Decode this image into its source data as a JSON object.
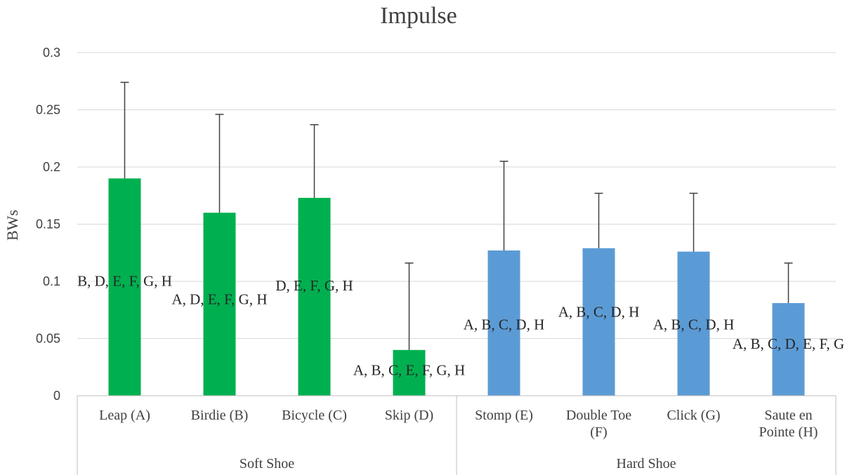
{
  "chart_data": {
    "type": "bar",
    "title": "Impulse",
    "ylabel": "BWs",
    "xlabel": "",
    "ylim": [
      0,
      0.3
    ],
    "yticks": [
      "0",
      "0.05",
      "0.1",
      "0.15",
      "0.2",
      "0.25",
      "0.3"
    ],
    "grid": true,
    "groups": [
      {
        "name": "Soft Shoe",
        "color": "#00b050",
        "categories": [
          0,
          1,
          2,
          3
        ]
      },
      {
        "name": "Hard Shoe",
        "color": "#5b9bd5",
        "categories": [
          4,
          5,
          6,
          7
        ]
      }
    ],
    "categories": [
      [
        "Leap (A)"
      ],
      [
        "Birdie (B)"
      ],
      [
        "Bicycle (C)"
      ],
      [
        "Skip (D)"
      ],
      [
        "Stomp (E)"
      ],
      [
        "Double Toe",
        "(F)"
      ],
      [
        "Click (G)"
      ],
      [
        "Saute en",
        "Pointe (H)"
      ]
    ],
    "values": [
      0.19,
      0.16,
      0.173,
      0.04,
      0.127,
      0.129,
      0.126,
      0.081
    ],
    "error_upper": [
      0.274,
      0.246,
      0.237,
      0.116,
      0.205,
      0.177,
      0.177,
      0.116
    ],
    "annotations": [
      "B, D, E, F, G, H",
      "A, D, E, F, G, H",
      "D, E, F, G, H",
      "A, B, C, E, F, G, H",
      "A, B, C, D, H",
      "A, B, C, D, H",
      "A, B, C, D, H",
      "A, B, C, D, E, F, G"
    ],
    "annotation_values": [
      0.096,
      0.08,
      0.092,
      0.018,
      0.058,
      0.069,
      0.058,
      0.041
    ]
  }
}
